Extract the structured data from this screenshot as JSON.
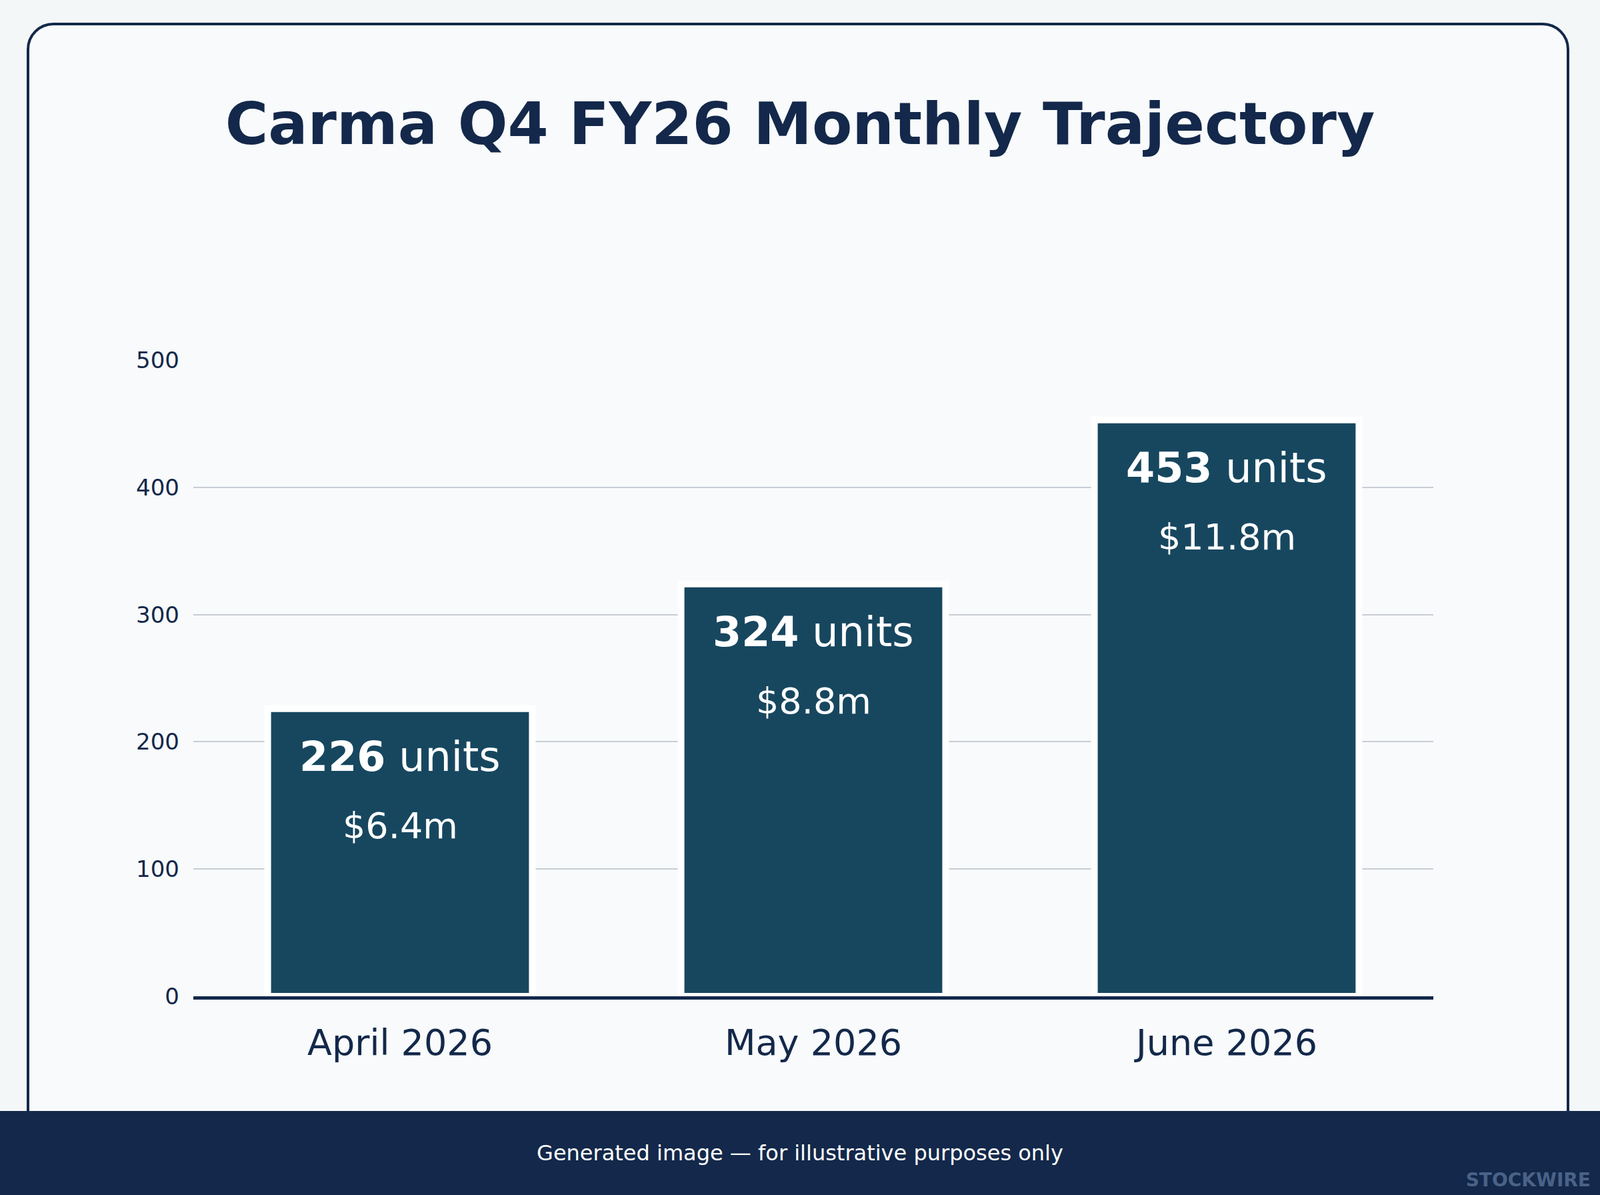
{
  "chart_data": {
    "type": "bar",
    "title": "Carma Q4 FY26 Monthly Trajectory",
    "categories": [
      "April 2026",
      "May 2026",
      "June 2026"
    ],
    "values": [
      226,
      324,
      453
    ],
    "value_labels": [
      "226 units",
      "324 units",
      "453 units"
    ],
    "revenue_labels": [
      "$6.4m",
      "$8.8m",
      "$11.8m"
    ],
    "color": "#17475f",
    "ylim": [
      0,
      500
    ],
    "yticks": [
      0,
      100,
      200,
      300,
      400,
      500
    ],
    "grid": true,
    "data_labels": true
  },
  "footer": "Generated image — for illustrative purposes only",
  "watermark": "STOCKWIRE"
}
